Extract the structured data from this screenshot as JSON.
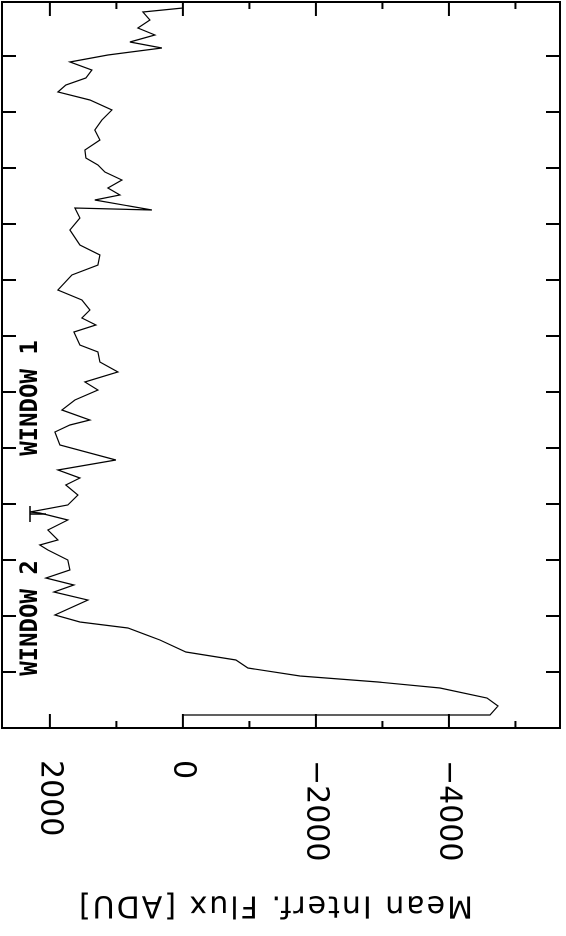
{
  "chart_data": {
    "type": "line",
    "ylabel": "Mean Interf. Flux [ADU]",
    "annotations": [
      "WINDOW 2",
      "WINDOW 1"
    ],
    "x": [
      13,
      13,
      22,
      30,
      40,
      46,
      52,
      60,
      68,
      76,
      88,
      100,
      106,
      113,
      128,
      136,
      143,
      150,
      158,
      168,
      178,
      183,
      188,
      198,
      208,
      215,
      216,
      223,
      233,
      243,
      250,
      258,
      268,
      283,
      296,
      303,
      308,
      318,
      328,
      338,
      346,
      356,
      366,
      376,
      383,
      396,
      403,
      410,
      418,
      428,
      438,
      453,
      463,
      473,
      483,
      498,
      510,
      520,
      518,
      528,
      533,
      540,
      548,
      556,
      563,
      570,
      578,
      588,
      598,
      608,
      618,
      628,
      636,
      643,
      650,
      658,
      666,
      673,
      680,
      686,
      693,
      700,
      708,
      716,
      720
    ],
    "values": [
      0,
      -4617,
      -4738,
      -4572,
      -3865,
      -2933,
      -1760,
      -978,
      -797,
      -45,
      346,
      827,
      1549,
      1925,
      1429,
      1940,
      1639,
      2060,
      1699,
      1730,
      2030,
      2151,
      1880,
      2030,
      1730,
      2151,
      2301,
      1730,
      1579,
      1760,
      1549,
      1880,
      1008,
      1850,
      1925,
      1699,
      1399,
      1820,
      1624,
      1278,
      1474,
      978,
      1248,
      1278,
      1549,
      1639,
      1308,
      1519,
      1399,
      1519,
      1880,
      1669,
      1278,
      1248,
      1549,
      1699,
      1549,
      1624,
      466,
      1324,
      948,
      1128,
      917,
      1173,
      1278,
      1459,
      1474,
      1248,
      1324,
      1218,
      1068,
      1399,
      1880,
      1760,
      1459,
      1369,
      1699,
      1128,
      316,
      797,
      421,
      677,
      496,
      602,
      0
    ],
    "color": "#000000",
    "xlim": [
      0,
      726
    ],
    "xticks": [
      56,
      112,
      168,
      224,
      280,
      336,
      392,
      448,
      504,
      560,
      616,
      672
    ],
    "ylim": [
      -5670,
      2720
    ],
    "yticks": [
      2000,
      0,
      {
        "value": -2000,
        "label": "−2000"
      },
      {
        "value": -4000,
        "label": "−4000"
      }
    ],
    "yminorticks": [
      1000,
      -1000,
      -3000,
      -5000
    ]
  }
}
